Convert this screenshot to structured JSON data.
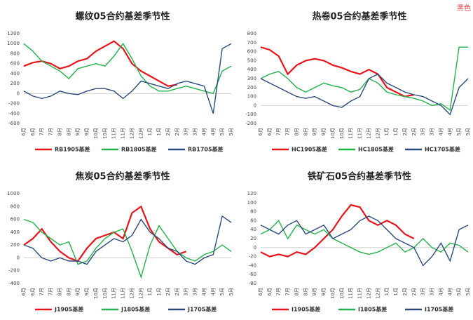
{
  "watermark": "黑色",
  "chart_data": [
    {
      "type": "line",
      "title": "螺纹05合约基差季节性",
      "categories": [
        "6月",
        "6月",
        "7月",
        "7月",
        "8月",
        "8月",
        "9月",
        "9月",
        "10月",
        "10月",
        "11月",
        "11月",
        "12月",
        "12月",
        "1月",
        "1月",
        "2月",
        "2月",
        "3月",
        "3月",
        "4月",
        "4月",
        "5月",
        "5月"
      ],
      "ylim": [
        -600,
        1200
      ],
      "yticks": [
        -600,
        -400,
        -200,
        0,
        200,
        400,
        600,
        800,
        1000,
        1200
      ],
      "series": [
        {
          "name": "RB1905基差",
          "color": "#e8141b",
          "values": [
            550,
            620,
            650,
            600,
            500,
            550,
            650,
            700,
            850,
            950,
            1050,
            900,
            600,
            450,
            350,
            250,
            150,
            180,
            null,
            null,
            null,
            null,
            null,
            null
          ]
        },
        {
          "name": "RB1805基差",
          "color": "#22b24c",
          "values": [
            1000,
            850,
            650,
            550,
            450,
            300,
            500,
            550,
            600,
            550,
            750,
            1000,
            700,
            350,
            150,
            50,
            50,
            100,
            150,
            100,
            50,
            0,
            450,
            550
          ]
        },
        {
          "name": "RB1705基差",
          "color": "#2b4a7a",
          "values": [
            50,
            -50,
            -100,
            -50,
            50,
            0,
            -20,
            50,
            100,
            100,
            50,
            -100,
            50,
            250,
            200,
            150,
            100,
            200,
            250,
            200,
            150,
            -400,
            900,
            1000
          ]
        }
      ]
    },
    {
      "type": "line",
      "title": "热卷05合约基差季节性",
      "categories": [
        "6月",
        "6月",
        "7月",
        "7月",
        "8月",
        "8月",
        "9月",
        "9月",
        "10月",
        "10月",
        "11月",
        "11月",
        "12月",
        "12月",
        "1月",
        "1月",
        "2月",
        "2月",
        "3月",
        "3月",
        "4月",
        "4月",
        "5月",
        "5月"
      ],
      "ylim": [
        -200,
        800
      ],
      "yticks": [
        -200,
        -100,
        0,
        100,
        200,
        300,
        400,
        500,
        600,
        700,
        800
      ],
      "series": [
        {
          "name": "HC1905基差",
          "color": "#e8141b",
          "values": [
            650,
            620,
            550,
            350,
            450,
            500,
            520,
            500,
            450,
            420,
            380,
            350,
            400,
            350,
            200,
            150,
            100,
            120,
            null,
            null,
            null,
            null,
            null,
            null
          ]
        },
        {
          "name": "HC1805基差",
          "color": "#22b24c",
          "values": [
            300,
            350,
            380,
            300,
            200,
            150,
            200,
            250,
            220,
            200,
            150,
            180,
            300,
            250,
            150,
            120,
            100,
            80,
            50,
            0,
            20,
            -50,
            650,
            650
          ]
        },
        {
          "name": "HC1705基差",
          "color": "#2b4a7a",
          "values": [
            300,
            250,
            200,
            150,
            100,
            80,
            100,
            50,
            0,
            -20,
            50,
            100,
            300,
            350,
            250,
            200,
            150,
            120,
            100,
            50,
            0,
            -100,
            200,
            300
          ]
        }
      ]
    },
    {
      "type": "line",
      "title": "焦炭05合约基差季节性",
      "categories": [
        "6月",
        "6月",
        "7月",
        "7月",
        "8月",
        "8月",
        "9月",
        "9月",
        "10月",
        "10月",
        "11月",
        "11月",
        "12月",
        "12月",
        "1月",
        "1月",
        "2月",
        "2月",
        "3月",
        "3月",
        "4月",
        "4月",
        "5月",
        "5月"
      ],
      "ylim": [
        -400,
        1000
      ],
      "yticks": [
        -400,
        -200,
        0,
        200,
        400,
        600,
        800,
        1000
      ],
      "series": [
        {
          "name": "J1905基差",
          "color": "#e8141b",
          "values": [
            200,
            300,
            450,
            250,
            100,
            0,
            -50,
            150,
            300,
            350,
            400,
            300,
            700,
            800,
            450,
            250,
            150,
            50,
            100,
            null,
            null,
            null,
            null,
            null
          ]
        },
        {
          "name": "J1805基差",
          "color": "#22b24c",
          "values": [
            600,
            550,
            400,
            300,
            200,
            250,
            -100,
            -50,
            150,
            300,
            400,
            450,
            100,
            -300,
            200,
            500,
            300,
            100,
            0,
            -50,
            50,
            100,
            200,
            100
          ]
        },
        {
          "name": "J1705基差",
          "color": "#2b4a7a",
          "values": [
            200,
            150,
            0,
            -50,
            0,
            -50,
            -50,
            -100,
            100,
            200,
            300,
            250,
            350,
            600,
            400,
            300,
            150,
            100,
            -50,
            -100,
            0,
            50,
            650,
            550
          ]
        }
      ]
    },
    {
      "type": "line",
      "title": "铁矿石05合约基差季节性",
      "categories": [
        "6月",
        "6月",
        "7月",
        "7月",
        "8月",
        "8月",
        "9月",
        "9月",
        "10月",
        "10月",
        "11月",
        "11月",
        "12月",
        "12月",
        "1月",
        "1月",
        "2月",
        "2月",
        "3月",
        "3月",
        "4月",
        "4月",
        "5月",
        "5月"
      ],
      "ylim": [
        -80,
        120
      ],
      "yticks": [
        -80,
        -60,
        -40,
        -20,
        0,
        20,
        40,
        60,
        80,
        100,
        120
      ],
      "series": [
        {
          "name": "I1905基差",
          "color": "#e8141b",
          "values": [
            -10,
            -20,
            -15,
            -20,
            -10,
            -15,
            0,
            20,
            40,
            70,
            95,
            90,
            60,
            50,
            60,
            50,
            30,
            20,
            null,
            null,
            null,
            null,
            null,
            null
          ]
        },
        {
          "name": "I1805基差",
          "color": "#22b24c",
          "values": [
            30,
            40,
            60,
            20,
            50,
            40,
            30,
            40,
            20,
            10,
            0,
            -10,
            -15,
            -10,
            0,
            10,
            -10,
            0,
            20,
            0,
            -10,
            10,
            5,
            -10
          ]
        },
        {
          "name": "I1705基差",
          "color": "#2b4a7a",
          "values": [
            50,
            40,
            30,
            50,
            60,
            30,
            40,
            50,
            20,
            30,
            40,
            60,
            70,
            60,
            40,
            20,
            10,
            0,
            -40,
            -20,
            10,
            -30,
            40,
            50
          ]
        }
      ]
    }
  ]
}
